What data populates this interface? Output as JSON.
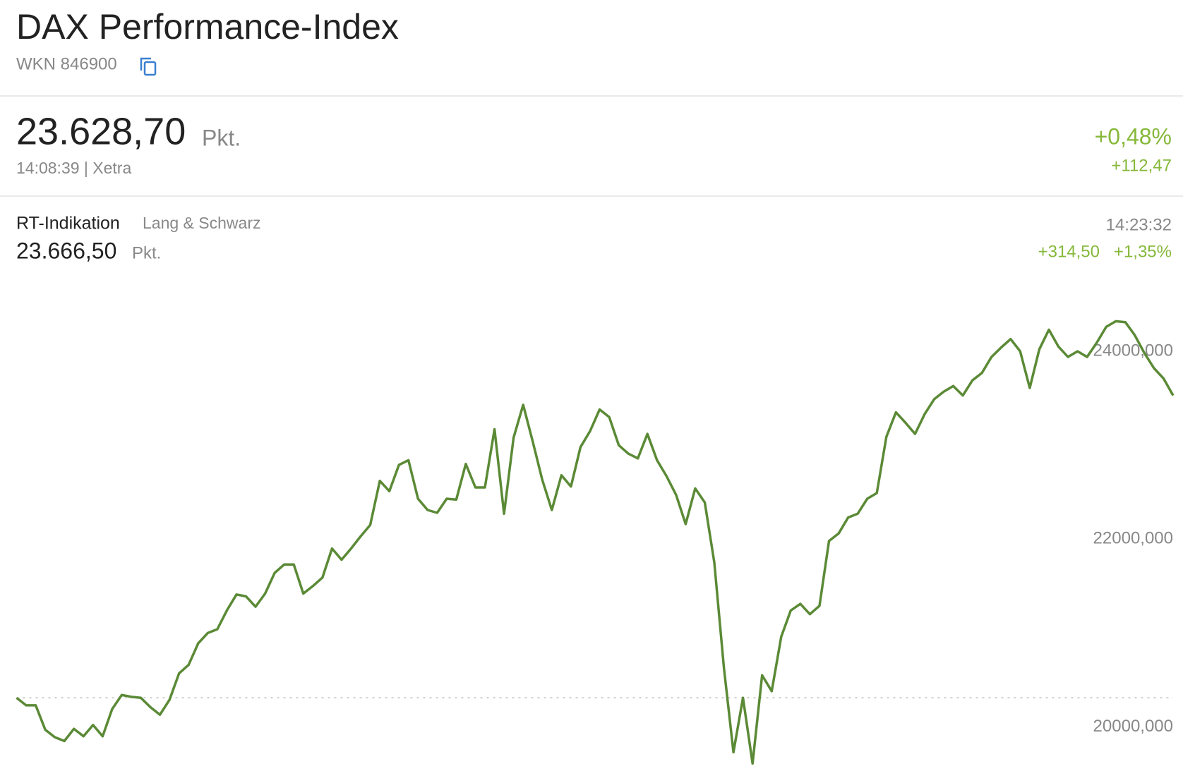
{
  "header": {
    "title": "DAX Performance-Index",
    "wkn": "WKN 846900"
  },
  "quote": {
    "price": "23.628,70",
    "unit": "Pkt.",
    "time_exchange": "14:08:39 | Xetra",
    "change_pct": "+0,48%",
    "change_abs": "+112,47"
  },
  "rt": {
    "label": "RT-Indikation",
    "source": "Lang & Schwarz",
    "price": "23.666,50",
    "unit": "Pkt.",
    "time": "14:23:32",
    "change_abs": "+314,50",
    "change_pct": "+1,35%"
  },
  "chart_data": {
    "type": "line",
    "color": "#5b8a36",
    "values": [
      20310,
      20230,
      20230,
      19970,
      19890,
      19850,
      19980,
      19900,
      20020,
      19900,
      20190,
      20340,
      20320,
      20310,
      20210,
      20130,
      20290,
      20570,
      20660,
      20890,
      21000,
      21040,
      21240,
      21410,
      21390,
      21280,
      21420,
      21640,
      21730,
      21730,
      21420,
      21500,
      21590,
      21900,
      21780,
      21900,
      22030,
      22150,
      22620,
      22510,
      22790,
      22840,
      22430,
      22310,
      22280,
      22430,
      22420,
      22800,
      22550,
      22550,
      23170,
      22270,
      23080,
      23430,
      23040,
      22630,
      22310,
      22680,
      22560,
      22980,
      23150,
      23380,
      23300,
      23000,
      22910,
      22860,
      23120,
      22840,
      22670,
      22470,
      22160,
      22540,
      22390,
      21750,
      20630,
      19730,
      20310,
      19610,
      20550,
      20380,
      20960,
      21240,
      21310,
      21200,
      21290,
      21980,
      22060,
      22230,
      22270,
      22430,
      22490,
      23090,
      23350,
      23240,
      23120,
      23330,
      23490,
      23570,
      23630,
      23530,
      23690,
      23770,
      23940,
      24040,
      24130,
      24000,
      23610,
      24020,
      24230,
      24050,
      23940,
      24000,
      23940,
      24090,
      24260,
      24320,
      24310,
      24170,
      23980,
      23820,
      23710,
      23530
    ],
    "ylim": [
      19550,
      24700
    ],
    "yticks": [
      {
        "value": 20000,
        "label": "20000,000"
      },
      {
        "value": 22000,
        "label": "22000,000"
      },
      {
        "value": 24000,
        "label": "24000,000"
      }
    ],
    "baseline": 20310
  }
}
